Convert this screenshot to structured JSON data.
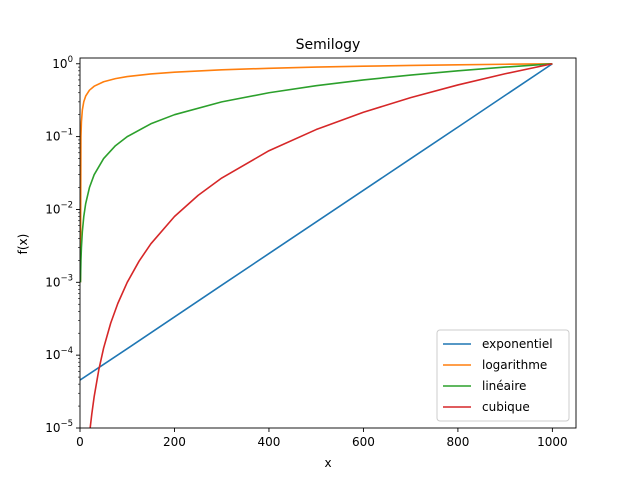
{
  "chart_data": {
    "type": "line",
    "title": "Semilogy",
    "xlabel": "x",
    "ylabel": "f(x)",
    "xlim": [
      0,
      1050
    ],
    "ylim": [
      1e-05,
      1.2
    ],
    "yscale": "log",
    "grid": false,
    "legend_position": "lower-right",
    "x_ticks": [
      0,
      200,
      400,
      600,
      800,
      1000
    ],
    "x_tick_labels": [
      "0",
      "200",
      "400",
      "600",
      "800",
      "1000"
    ],
    "y_ticks": [
      {
        "value": 1e-05,
        "base": "10",
        "exp": "−5"
      },
      {
        "value": 0.0001,
        "base": "10",
        "exp": "−4"
      },
      {
        "value": 0.001,
        "base": "10",
        "exp": "−3"
      },
      {
        "value": 0.01,
        "base": "10",
        "exp": "−2"
      },
      {
        "value": 0.1,
        "base": "10",
        "exp": "−1"
      },
      {
        "value": 1,
        "base": "10",
        "exp": "0"
      }
    ],
    "series": [
      {
        "name": "exponentiel",
        "color": "#1f77b4",
        "x": [
          0,
          100,
          200,
          300,
          400,
          500,
          600,
          700,
          800,
          900,
          1000
        ],
        "y": [
          4.54e-05,
          0.0001228,
          0.000335,
          0.000912,
          0.00248,
          0.00674,
          0.0183,
          0.0498,
          0.135,
          0.368,
          1.0
        ]
      },
      {
        "name": "logarithme",
        "color": "#ff7f0e",
        "x": [
          1,
          2,
          3,
          5,
          8,
          12,
          20,
          30,
          50,
          75,
          100,
          150,
          200,
          300,
          400,
          500,
          600,
          700,
          800,
          900,
          1000
        ],
        "y": [
          0.001,
          0.1,
          0.159,
          0.233,
          0.301,
          0.36,
          0.434,
          0.492,
          0.566,
          0.625,
          0.667,
          0.725,
          0.767,
          0.826,
          0.867,
          0.9,
          0.926,
          0.948,
          0.968,
          0.985,
          1.0
        ]
      },
      {
        "name": "linéaire",
        "color": "#2ca02c",
        "x": [
          1,
          2,
          3,
          5,
          8,
          12,
          20,
          30,
          50,
          75,
          100,
          150,
          200,
          300,
          400,
          500,
          600,
          700,
          800,
          900,
          1000
        ],
        "y": [
          0.001,
          0.002,
          0.003,
          0.005,
          0.008,
          0.012,
          0.02,
          0.03,
          0.05,
          0.075,
          0.1,
          0.15,
          0.2,
          0.3,
          0.4,
          0.5,
          0.6,
          0.7,
          0.8,
          0.9,
          1.0
        ]
      },
      {
        "name": "cubique",
        "color": "#d62728",
        "x": [
          21.5,
          25,
          30,
          40,
          50,
          65,
          80,
          100,
          125,
          150,
          200,
          250,
          300,
          400,
          500,
          600,
          700,
          800,
          900,
          1000
        ],
        "y": [
          1e-05,
          1.56e-05,
          2.7e-05,
          6.4e-05,
          0.000125,
          0.000275,
          0.000512,
          0.001,
          0.00195,
          0.003375,
          0.008,
          0.0156,
          0.027,
          0.064,
          0.125,
          0.216,
          0.343,
          0.512,
          0.729,
          1.0
        ]
      }
    ]
  }
}
